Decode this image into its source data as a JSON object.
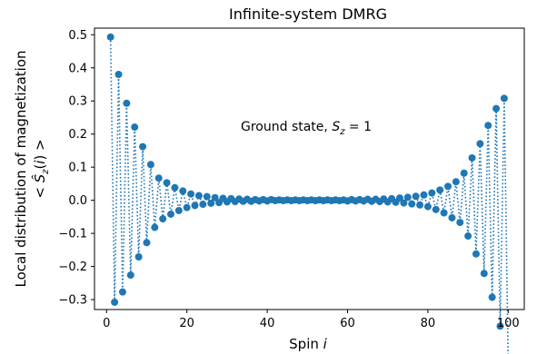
{
  "chart_data": {
    "type": "line",
    "title": "Infinite-system DMRG",
    "xlabel": "Spin i",
    "ylabel_line1": "Local distribution of magnetization",
    "ylabel_line2": "< Ŝz(i) >",
    "annotation": "Ground state, Sz = 1",
    "xlim": [
      -3,
      104
    ],
    "ylim": [
      -0.33,
      0.52
    ],
    "xticks": [
      0,
      20,
      40,
      60,
      80,
      100
    ],
    "yticks": [
      -0.3,
      -0.2,
      -0.1,
      0.0,
      0.1,
      0.2,
      0.3,
      0.4,
      0.5
    ],
    "ytick_labels": [
      "−0.3",
      "−0.2",
      "−0.1",
      "0.0",
      "0.1",
      "0.2",
      "0.3",
      "0.4",
      "0.5"
    ],
    "grid": false,
    "legend": "none",
    "series": [
      {
        "color": "#1f77b4",
        "line_style": "dotted",
        "marker": "circle",
        "x": [
          1,
          2,
          3,
          4,
          5,
          6,
          7,
          8,
          9,
          10,
          11,
          12,
          13,
          14,
          15,
          16,
          17,
          18,
          19,
          20,
          21,
          22,
          23,
          24,
          25,
          26,
          27,
          28,
          29,
          30,
          31,
          32,
          33,
          34,
          35,
          36,
          37,
          38,
          39,
          40,
          41,
          42,
          43,
          44,
          45,
          46,
          47,
          48,
          49,
          50,
          51,
          52,
          53,
          54,
          55,
          56,
          57,
          58,
          59,
          60,
          61,
          62,
          63,
          64,
          65,
          66,
          67,
          68,
          69,
          70,
          71,
          72,
          73,
          74,
          75,
          76,
          77,
          78,
          79,
          80,
          81,
          82,
          83,
          84,
          85,
          86,
          87,
          88,
          89,
          90,
          91,
          92,
          93,
          94,
          95,
          96,
          97,
          98,
          99,
          100
        ],
        "values": [
          0.493,
          -0.308,
          0.38,
          -0.277,
          0.293,
          -0.226,
          0.221,
          -0.171,
          0.162,
          -0.128,
          0.108,
          -0.082,
          0.067,
          -0.056,
          0.053,
          -0.042,
          0.038,
          -0.031,
          0.028,
          -0.022,
          0.019,
          -0.016,
          0.014,
          -0.012,
          0.011,
          -0.009,
          0.008,
          -0.007,
          0.006,
          -0.005,
          0.005,
          -0.004,
          0.004,
          -0.003,
          0.003,
          -0.003,
          0.002,
          -0.002,
          0.002,
          -0.002,
          0.002,
          -0.001,
          0.001,
          -0.001,
          0.001,
          -0.001,
          0.001,
          -0.001,
          0.001,
          -0.001,
          0.001,
          -0.001,
          0.001,
          -0.001,
          0.001,
          -0.001,
          0.001,
          -0.001,
          0.001,
          -0.002,
          0.002,
          -0.002,
          0.002,
          -0.002,
          0.003,
          -0.003,
          0.003,
          -0.004,
          0.004,
          -0.005,
          0.005,
          -0.006,
          0.007,
          -0.008,
          0.009,
          -0.011,
          0.012,
          -0.014,
          0.016,
          -0.019,
          0.022,
          -0.028,
          0.031,
          -0.038,
          0.042,
          -0.053,
          0.056,
          -0.067,
          0.082,
          -0.108,
          0.128,
          -0.162,
          0.171,
          -0.221,
          0.226,
          -0.293,
          0.277,
          -0.38,
          0.308,
          -0.493
        ]
      }
    ]
  }
}
